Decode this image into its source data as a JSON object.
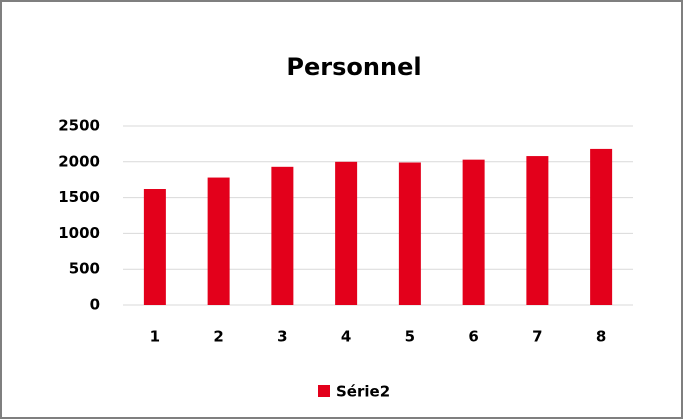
{
  "chart_data": {
    "type": "bar",
    "title": "Personnel",
    "categories": [
      "1",
      "2",
      "3",
      "4",
      "5",
      "6",
      "7",
      "8"
    ],
    "series": [
      {
        "name": "Série2",
        "color": "#e3001b",
        "values": [
          1620,
          1780,
          1930,
          2000,
          1990,
          2030,
          2080,
          2180
        ]
      }
    ],
    "ylim": [
      0,
      2500
    ],
    "yticks": [
      0,
      500,
      1000,
      1500,
      2000,
      2500
    ],
    "grid": true,
    "legend": "bottom"
  }
}
